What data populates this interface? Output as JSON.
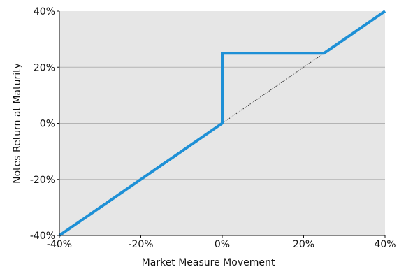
{
  "chart_data": {
    "type": "line",
    "title": "",
    "xlabel": "Market Measure Movement",
    "ylabel": "Notes Return at Maturity",
    "xlim": [
      -40,
      40
    ],
    "ylim": [
      -40,
      40
    ],
    "x_ticks": [
      -40,
      -20,
      0,
      20,
      40
    ],
    "y_ticks": [
      -40,
      -20,
      0,
      20,
      40
    ],
    "x_tick_labels": [
      "-40%",
      "-20%",
      "0%",
      "20%",
      "40%"
    ],
    "y_tick_labels": [
      "-40%",
      "-20%",
      "0%",
      "20%",
      "40%"
    ],
    "grid": true,
    "legend": "none",
    "series": [
      {
        "style": "solid",
        "color": "#1e90d6",
        "x": [
          -40,
          0,
          0,
          25,
          40
        ],
        "y": [
          -40,
          0,
          25,
          25,
          40
        ]
      },
      {
        "style": "dotted",
        "color": "#333333",
        "x": [
          0,
          25
        ],
        "y": [
          0,
          25
        ]
      }
    ],
    "colors": {
      "plot_background": "#e6e6e6",
      "gridline": "#b3b3b3",
      "axis": "#111111"
    }
  }
}
